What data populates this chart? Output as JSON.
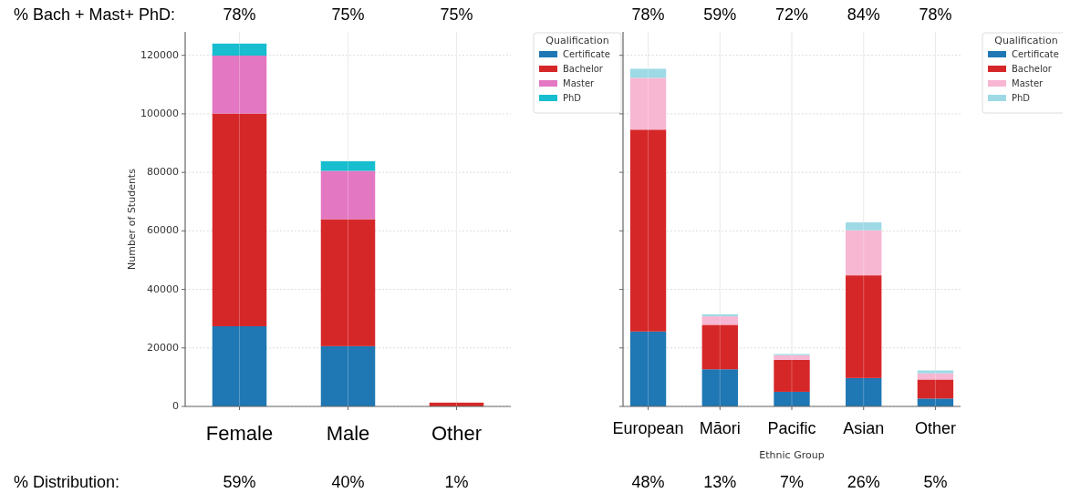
{
  "chart_data": [
    {
      "type": "bar",
      "stacked": true,
      "ylabel": "Number of Students",
      "legend_title": "Qualification",
      "legend": "right",
      "grid": true,
      "categories": [
        "Female",
        "Male",
        "Other"
      ],
      "ylim": [
        0,
        128000
      ],
      "yticks": [
        0,
        20000,
        40000,
        60000,
        80000,
        100000,
        120000
      ],
      "series": [
        {
          "name": "Certificate",
          "color": "#1f77b4",
          "values": [
            27400,
            20600,
            0
          ]
        },
        {
          "name": "Bachelor",
          "color": "#d62728",
          "values": [
            72700,
            43400,
            1300
          ]
        },
        {
          "name": "Master",
          "color": "#e377c2",
          "values": [
            19800,
            16500,
            null
          ]
        },
        {
          "name": "PhD",
          "color": "#17becf",
          "values": [
            4100,
            3300,
            0
          ]
        }
      ],
      "annotations": [
        "% Bach + Mast+ PhD:",
        "78%",
        "75%",
        "75%",
        "% Distribution:",
        "59%",
        "40%",
        "1%"
      ]
    },
    {
      "type": "bar",
      "stacked": true,
      "xlabel": "Ethnic Group",
      "legend_title": "Qualification",
      "legend": "right",
      "grid": true,
      "tick_labels": "x",
      "categories": [
        "European",
        "Māori",
        "Pacific",
        "Asian",
        "Other"
      ],
      "ylim": [
        0,
        128000
      ],
      "yticks": [
        0,
        20000,
        40000,
        60000,
        80000,
        100000,
        120000
      ],
      "series": [
        {
          "name": "Certificate",
          "color": "#1f77b4",
          "values": [
            25600,
            12700,
            5000,
            9700,
            2700
          ]
        },
        {
          "name": "Bachelor",
          "color": "#d62728",
          "values": [
            69000,
            15200,
            10900,
            35100,
            6500
          ]
        },
        {
          "name": "Master",
          "color": "#f7b6d2",
          "values": [
            17700,
            2900,
            1600,
            15400,
            2100
          ]
        },
        {
          "name": "PhD",
          "color": "#9edae5",
          "values": [
            3100,
            700,
            400,
            2700,
            1000
          ]
        }
      ],
      "annotations": [
        "78%",
        "59%",
        "72%",
        "84%",
        "78%",
        "48%",
        "13%",
        "7%",
        "26%",
        "5%"
      ]
    }
  ]
}
